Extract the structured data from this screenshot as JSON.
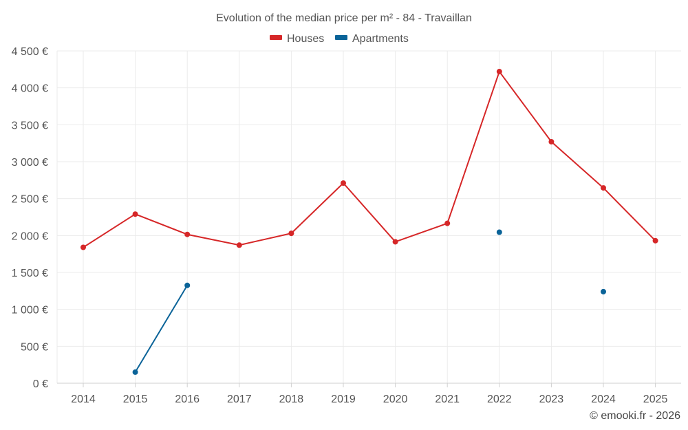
{
  "chart_data": {
    "type": "line",
    "title": "Evolution of the median price per m² - 84 - Travaillan",
    "categories": [
      "2014",
      "2015",
      "2016",
      "2017",
      "2018",
      "2019",
      "2020",
      "2021",
      "2022",
      "2023",
      "2024",
      "2025"
    ],
    "y_tick_labels": [
      "0 €",
      "500 €",
      "1 000 €",
      "1 500 €",
      "2 000 €",
      "2 500 €",
      "3 000 €",
      "3 500 €",
      "4 000 €",
      "4 500 €"
    ],
    "ylim": [
      0,
      4500
    ],
    "y_step": 500,
    "grid": true,
    "legend_position": "top-center",
    "series": [
      {
        "name": "Houses",
        "color": "#d62728",
        "values": [
          1840,
          2290,
          2015,
          1870,
          2030,
          2710,
          1915,
          2165,
          4220,
          3270,
          2645,
          1930
        ]
      },
      {
        "name": "Apartments",
        "color": "#0a6398",
        "values": [
          null,
          150,
          1325,
          null,
          null,
          null,
          null,
          null,
          2045,
          null,
          1240,
          null
        ]
      }
    ],
    "credit": "© emooki.fr - 2026"
  }
}
